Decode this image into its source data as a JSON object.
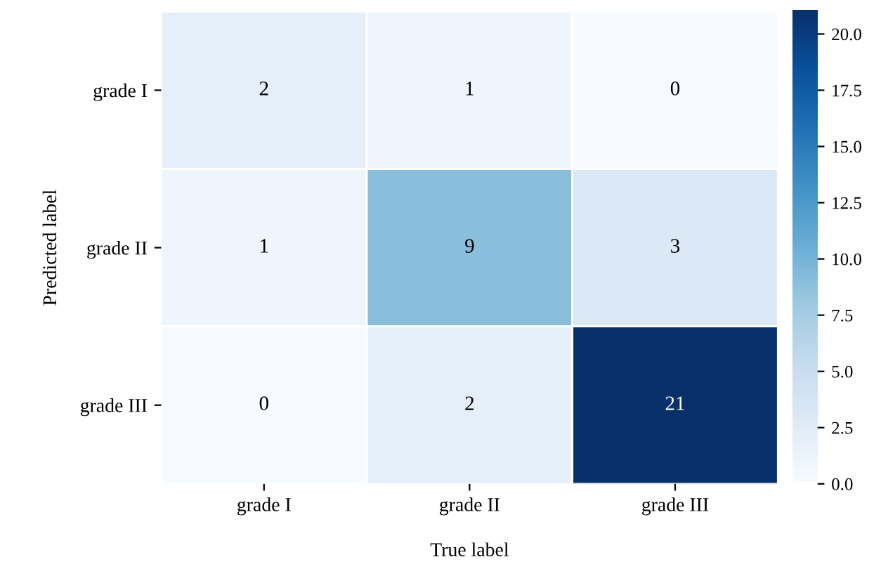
{
  "chart_data": {
    "type": "heatmap",
    "xlabel": "True label",
    "ylabel": "Predicted label",
    "categories": [
      "grade I",
      "grade II",
      "grade III"
    ],
    "y_categories": [
      "grade I",
      "grade II",
      "grade III"
    ],
    "cells": [
      [
        2,
        1,
        0
      ],
      [
        1,
        9,
        3
      ],
      [
        0,
        2,
        21
      ]
    ],
    "data_labels": true,
    "clim": [
      0,
      21
    ],
    "cticks": [
      {
        "value": 0,
        "label": "0.0"
      },
      {
        "value": 2.5,
        "label": "2.5"
      },
      {
        "value": 5,
        "label": "5.0"
      },
      {
        "value": 7.5,
        "label": "7.5"
      },
      {
        "value": 10,
        "label": "10.0"
      },
      {
        "value": 12.5,
        "label": "12.5"
      },
      {
        "value": 15,
        "label": "15.0"
      },
      {
        "value": 17.5,
        "label": "17.5"
      },
      {
        "value": 20,
        "label": "20.0"
      }
    ]
  }
}
